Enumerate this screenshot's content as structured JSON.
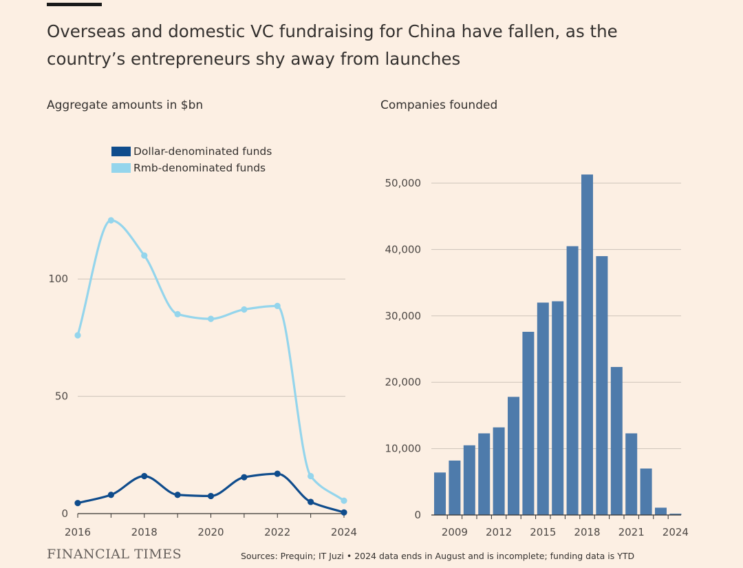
{
  "title": "Overseas and domestic VC fundraising for China have fallen, as the country’s entrepreneurs shy away from launches",
  "branding": "FINANCIAL TIMES",
  "source": "Sources: Prequin; IT Juzi • 2024 data ends in August and is incomplete; funding data is YTD",
  "colors": {
    "background": "#fcefe3",
    "dark_blue": "#0f4c8c",
    "light_blue": "#94d5ec",
    "bar_blue": "#4e7bab",
    "grid": "#cdc3b9"
  },
  "chart_data": [
    {
      "type": "line",
      "title": "Aggregate amounts in $bn",
      "x": [
        2016,
        2017,
        2018,
        2019,
        2020,
        2021,
        2022,
        2023,
        2024
      ],
      "xticks": [
        "2016",
        "2018",
        "2020",
        "2022",
        "2024"
      ],
      "yticks": [
        "0",
        "50",
        "100"
      ],
      "ylim": [
        0,
        125
      ],
      "grid": true,
      "legend_position": "top-left",
      "series": [
        {
          "name": "Dollar-denominated funds",
          "color": "#0f4c8c",
          "values": [
            4.5,
            8,
            16,
            8,
            7.5,
            15.5,
            17,
            5,
            0.5
          ]
        },
        {
          "name": "Rmb-denominated funds",
          "color": "#94d5ec",
          "values": [
            76,
            125,
            110,
            85,
            83,
            87,
            88.5,
            16,
            5.5
          ]
        }
      ]
    },
    {
      "type": "bar",
      "title": "Companies founded",
      "categories": [
        "2008",
        "2009",
        "2010",
        "2011",
        "2012",
        "2013",
        "2014",
        "2015",
        "2016",
        "2017",
        "2018",
        "2019",
        "2020",
        "2021",
        "2022",
        "2023",
        "2024"
      ],
      "xticks": [
        "2009",
        "2012",
        "2015",
        "2018",
        "2021",
        "2024"
      ],
      "yticks": [
        "0",
        "10,000",
        "20,000",
        "30,000",
        "40,000",
        "50,000"
      ],
      "values": [
        6400,
        8200,
        10500,
        12300,
        13200,
        17800,
        27600,
        32000,
        32200,
        40500,
        51300,
        39000,
        22300,
        12300,
        7000,
        1100,
        200
      ],
      "ylim": [
        0,
        50000
      ],
      "grid": true,
      "color": "#4e7bab"
    }
  ]
}
